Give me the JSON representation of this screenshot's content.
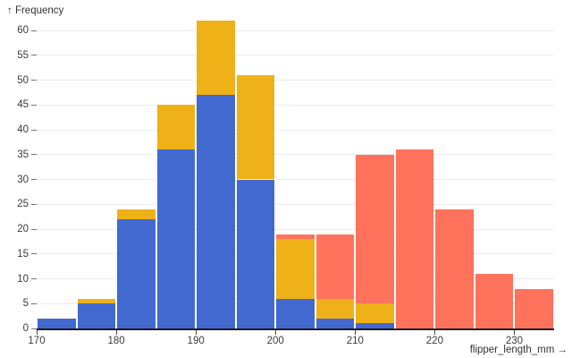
{
  "page": {
    "background": "#ffffff"
  },
  "chart_data": {
    "type": "bar",
    "subtype": "stacked-histogram",
    "title": "",
    "x_axis": {
      "label": "flipper_length_mm →",
      "range": [
        170,
        235
      ],
      "ticks": [
        170,
        180,
        190,
        200,
        210,
        220,
        230
      ]
    },
    "y_axis": {
      "label": "↑ Frequency",
      "range": [
        0,
        62
      ],
      "ticks": [
        0,
        5,
        10,
        15,
        20,
        25,
        30,
        35,
        40,
        45,
        50,
        55,
        60
      ],
      "grid": true
    },
    "bin_width": 5,
    "bins": [
      {
        "x0": 170,
        "x1": 175
      },
      {
        "x0": 175,
        "x1": 180
      },
      {
        "x0": 180,
        "x1": 185
      },
      {
        "x0": 185,
        "x1": 190
      },
      {
        "x0": 190,
        "x1": 195
      },
      {
        "x0": 195,
        "x1": 200
      },
      {
        "x0": 200,
        "x1": 205
      },
      {
        "x0": 205,
        "x1": 210
      },
      {
        "x0": 210,
        "x1": 215
      },
      {
        "x0": 215,
        "x1": 220
      },
      {
        "x0": 220,
        "x1": 225
      },
      {
        "x0": 225,
        "x1": 230
      },
      {
        "x0": 230,
        "x1": 235
      }
    ],
    "series": [
      {
        "name": "blue",
        "color": "#4269d0",
        "values": [
          2,
          5,
          22,
          36,
          47,
          30,
          6,
          2,
          1,
          0,
          0,
          0,
          0
        ]
      },
      {
        "name": "orange",
        "color": "#efb118",
        "values": [
          0,
          1,
          2,
          9,
          15,
          21,
          12,
          4,
          4,
          0,
          0,
          0,
          0
        ]
      },
      {
        "name": "red",
        "color": "#ff725c",
        "values": [
          0,
          0,
          0,
          0,
          0,
          0,
          1,
          13,
          30,
          36,
          24,
          11,
          8
        ]
      }
    ],
    "totals": [
      2,
      6,
      24,
      45,
      62,
      51,
      19,
      19,
      35,
      36,
      24,
      11,
      8
    ],
    "legend": null,
    "colors": {
      "grid": "#ececec",
      "zero_rule": "#1a1a1a",
      "tick_text": "#3b3b3b"
    }
  }
}
